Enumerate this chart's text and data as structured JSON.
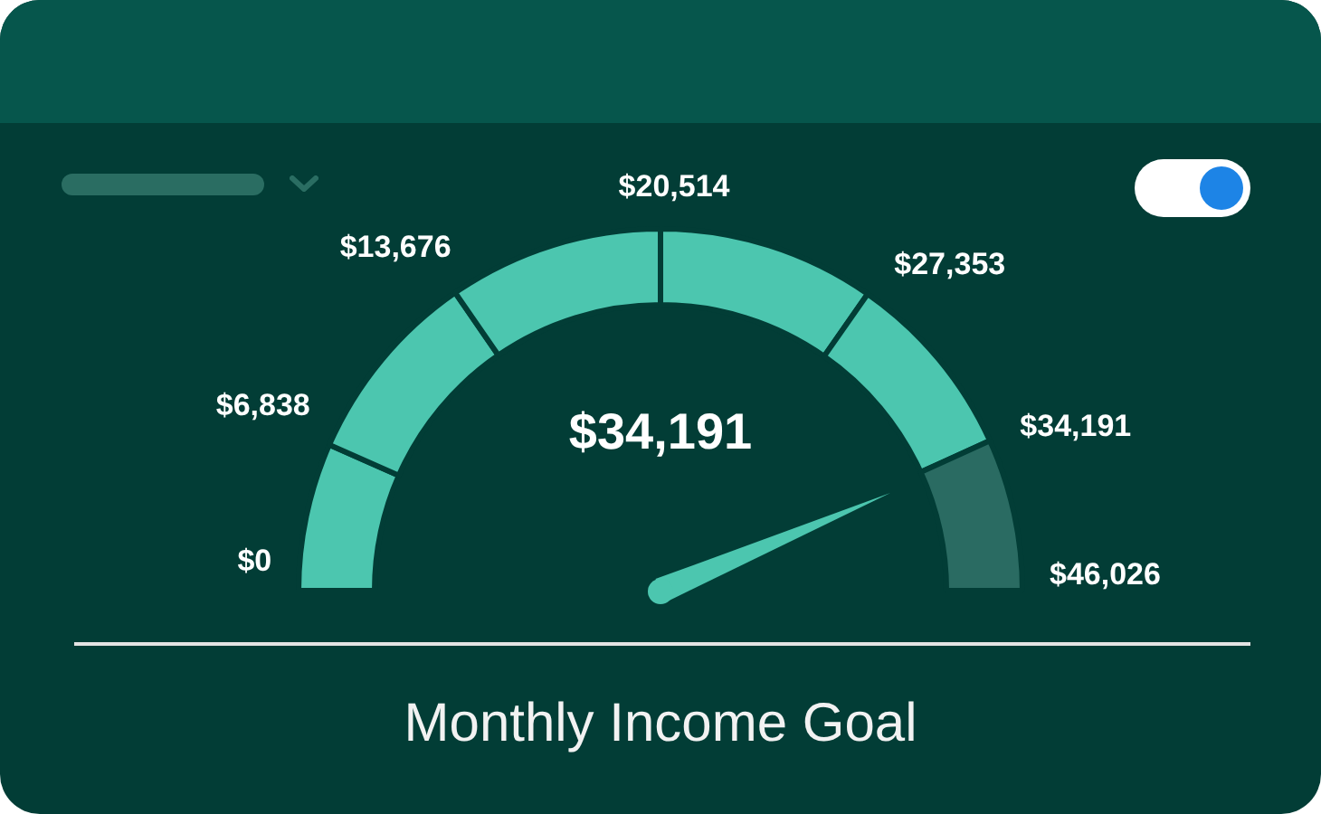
{
  "chart_data": {
    "type": "donut",
    "title": "Monthly Income Goal",
    "categories": [
      "$0",
      "$6,838",
      "$13,676",
      "$20,514",
      "$27,353",
      "$34,191"
    ],
    "values": [
      13.2,
      17.6,
      19.2,
      19.4,
      17.0,
      13.6
    ],
    "colors": [
      "#4cc6af",
      "#4cc6af",
      "#4cc6af",
      "#4cc6af",
      "#4cc6af",
      "#2a6b62"
    ],
    "needle": "$34,191",
    "annotations": [
      "$34,191",
      "$46,026"
    ]
  }
}
